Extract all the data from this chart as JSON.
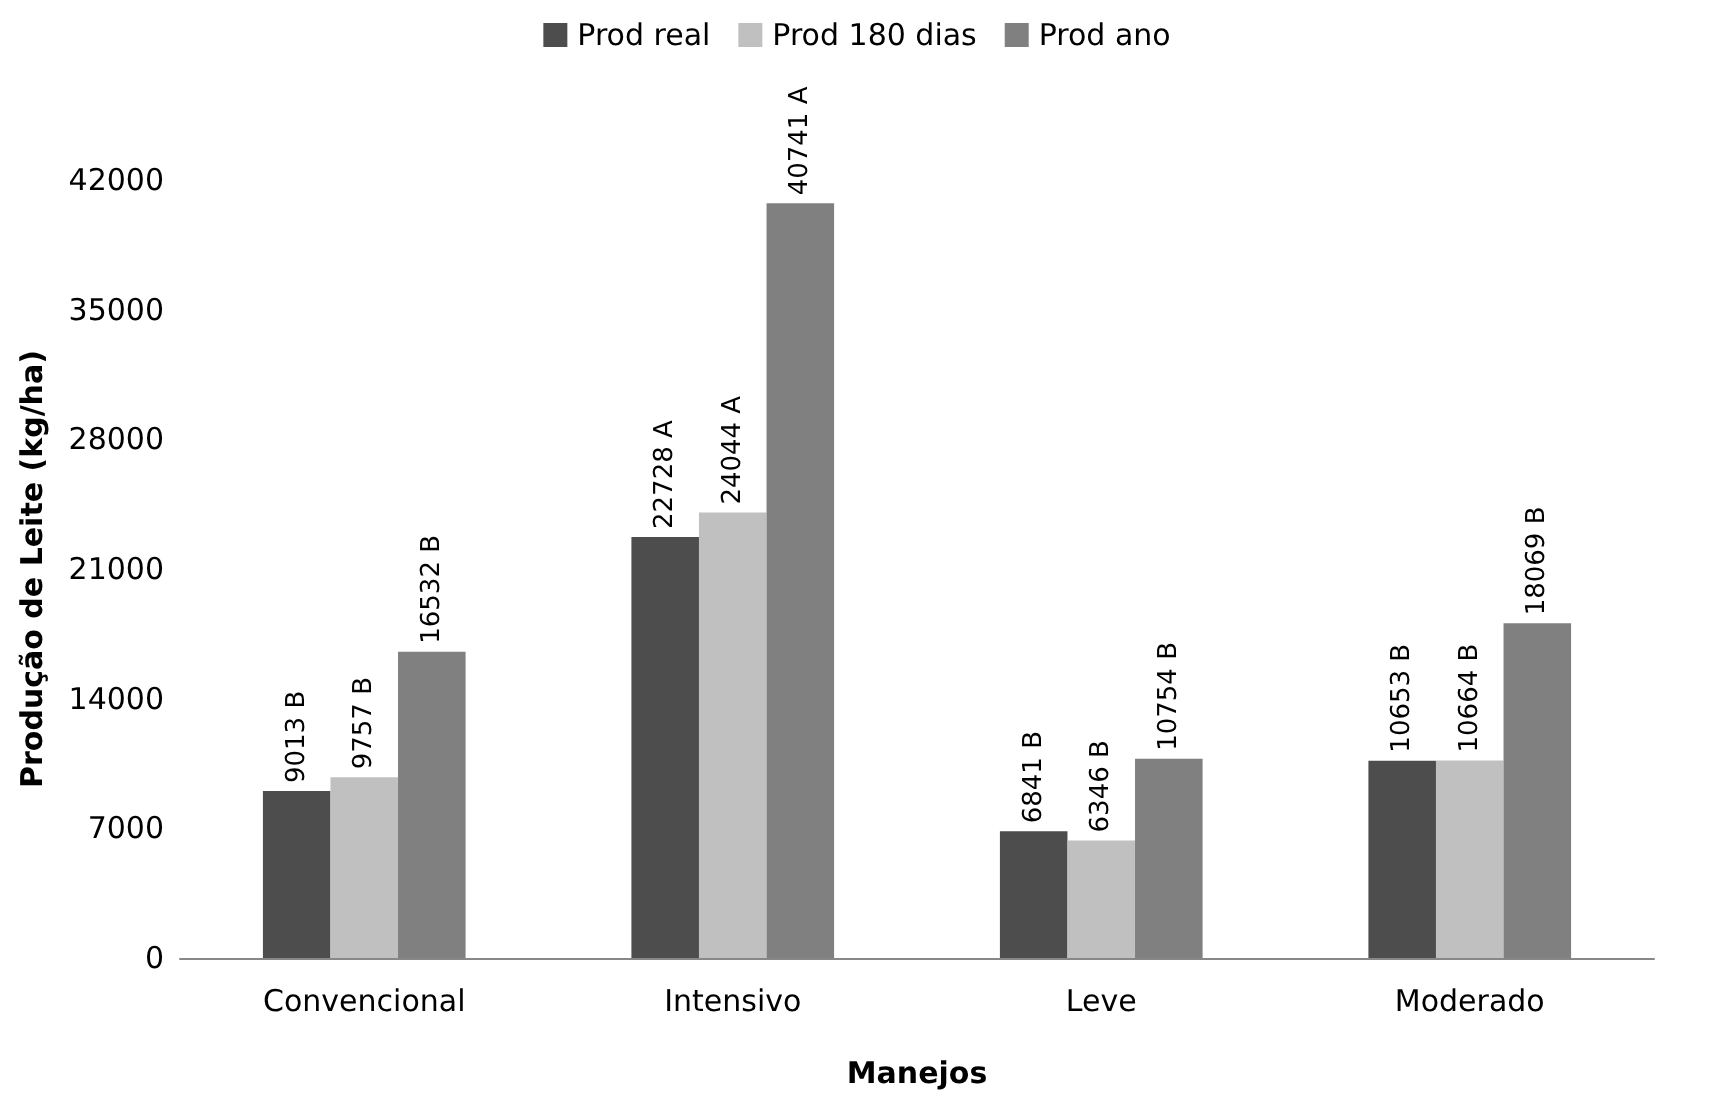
{
  "chart_data": {
    "type": "bar",
    "xlabel": "Manejos",
    "ylabel": "Produção de Leite (kg/ha)",
    "categories": [
      "Convencional",
      "Intensivo",
      "Leve",
      "Moderado"
    ],
    "series": [
      {
        "name": "Prod real",
        "color": "#4d4d4d",
        "values": [
          9013,
          22728,
          6841,
          10653
        ],
        "value_labels": [
          "9013 B",
          "22728 A",
          "6841 B",
          "10653 B"
        ]
      },
      {
        "name": "Prod 180 dias",
        "color": "#c0c0c0",
        "values": [
          9757,
          24044,
          6346,
          10664
        ],
        "value_labels": [
          "9757 B",
          "24044 A",
          "6346 B",
          "10664 B"
        ]
      },
      {
        "name": "Prod ano",
        "color": "#808080",
        "values": [
          16532,
          40741,
          10754,
          18069
        ],
        "value_labels": [
          "16532 B",
          "40741 A",
          "10754 B",
          "18069 B"
        ]
      }
    ],
    "ylim": [
      0,
      42000
    ],
    "yticks": [
      0,
      7000,
      14000,
      21000,
      28000,
      35000,
      42000
    ],
    "grid": false,
    "legend": "top"
  }
}
